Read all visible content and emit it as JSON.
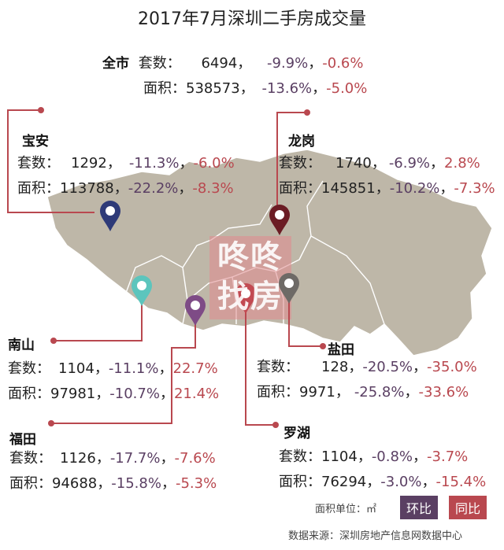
{
  "title": "2017年7月深圳二手房成交量",
  "colors": {
    "mom": "#5a3f63",
    "yoy": "#b9484f",
    "map": "#beb7a8",
    "leader": "#b9484f"
  },
  "citywide": {
    "name": "全市",
    "count_label": "套数：",
    "count": "6494",
    "count_mom": "-9.9%",
    "count_yoy": "-0.6%",
    "area_label": "面积：",
    "area": "538573",
    "area_mom": "-13.6%",
    "area_yoy": "-5.0%"
  },
  "districts": {
    "baoan": {
      "name": "宝安",
      "pin_color": "#2e3a78",
      "count_label": "套数：",
      "count": "1292",
      "count_mom": "-11.3%",
      "count_yoy": "-6.0%",
      "area_label": "面积：",
      "area": "113788",
      "area_mom": "-22.2%",
      "area_yoy": "-8.3%"
    },
    "longgang": {
      "name": "龙岗",
      "pin_color": "#6b1c24",
      "count_label": "套数：",
      "count": "1740",
      "count_mom": "-6.9%",
      "count_yoy": "2.8%",
      "area_label": "面积：",
      "area": "145851",
      "area_mom": "-10.2%",
      "area_yoy": "-7.3%"
    },
    "nanshan": {
      "name": "南山",
      "pin_color": "#5cc5bd",
      "count_label": "套数：",
      "count": "1104",
      "count_mom": "-11.1%",
      "count_yoy": "22.7%",
      "area_label": "面积：",
      "area": "97981",
      "area_mom": "-10.7%",
      "area_yoy": "21.4%"
    },
    "yantian": {
      "name": "盐田",
      "pin_color": "#6e6a66",
      "count_label": "套数：",
      "count": "128",
      "count_mom": "-20.5%",
      "count_yoy": "-35.0%",
      "area_label": "面积：",
      "area": "9971",
      "area_mom": "-25.8%",
      "area_yoy": "-33.6%"
    },
    "futian": {
      "name": "福田",
      "pin_color": "#7e4b86",
      "count_label": "套数：",
      "count": "1126",
      "count_mom": "-17.7%",
      "count_yoy": "-7.6%",
      "area_label": "面积：",
      "area": "94688",
      "area_mom": "-15.8%",
      "area_yoy": "-5.3%"
    },
    "luohu": {
      "name": "罗湖",
      "pin_color": "#c24a52",
      "count_label": "套数：",
      "count": "1104",
      "count_mom": "-0.8%",
      "count_yoy": "-3.7%",
      "area_label": "面积：",
      "area": "76294",
      "area_mom": "-3.0%",
      "area_yoy": "-15.4%"
    }
  },
  "legend": {
    "unit": "面积单位：㎡",
    "mom": "环比",
    "yoy": "同比"
  },
  "watermark": "咚咚找房",
  "source": "数据来源：深圳房地产信息网数据中心",
  "sep": "，"
}
